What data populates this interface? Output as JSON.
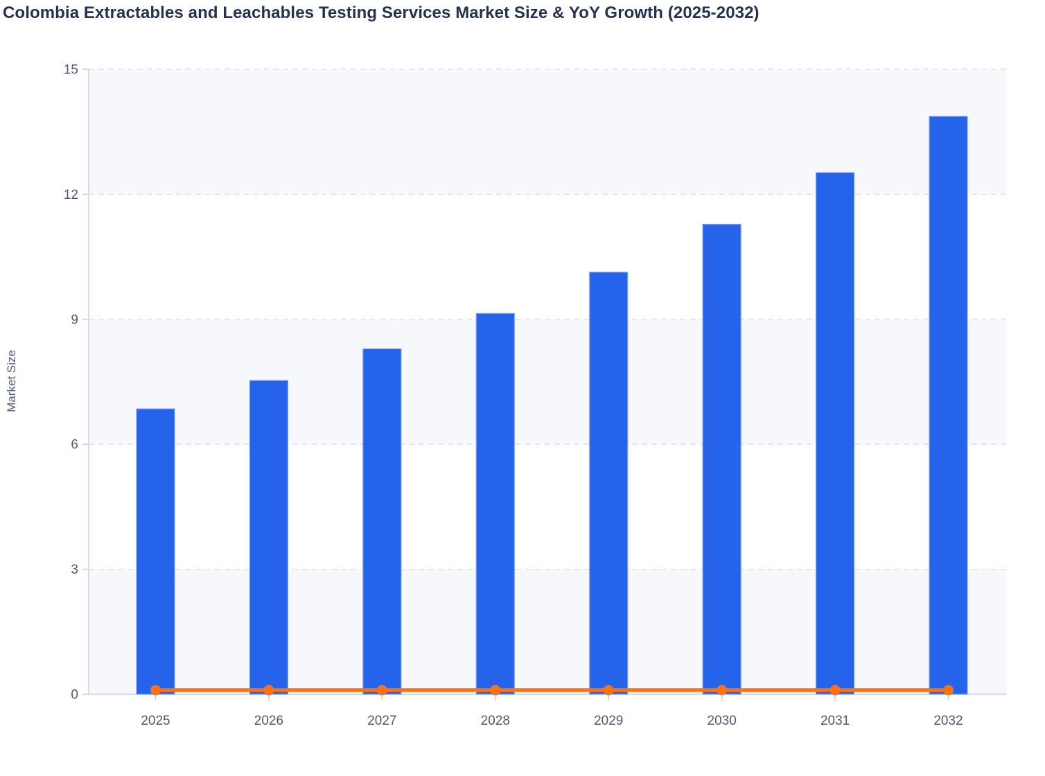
{
  "chart_data": {
    "type": "bar",
    "title": "Colombia Extractables and Leachables Testing Services Market Size & YoY Growth (2025-2032)",
    "xlabel": "",
    "ylabel": "Market Size",
    "categories": [
      "2025",
      "2026",
      "2027",
      "2028",
      "2029",
      "2030",
      "2031",
      "2032"
    ],
    "series": [
      {
        "name": "Market Size",
        "type": "bar",
        "color": "#2563eb",
        "bar_stroke": "#7d9ff2",
        "values": [
          6.85,
          7.53,
          8.29,
          9.14,
          10.13,
          11.28,
          12.52,
          13.87
        ]
      },
      {
        "name": "YoY Growth",
        "type": "line",
        "color": "#f97316",
        "marker": "circle",
        "values": [
          0.1,
          0.1,
          0.1,
          0.1,
          0.1,
          0.1,
          0.1,
          0.1
        ]
      }
    ],
    "ylim": [
      0,
      15
    ],
    "yticks": [
      0,
      3,
      6,
      9,
      12,
      15
    ],
    "grid": "horizontal-dashed",
    "legend": "none",
    "colors": {
      "band_gray": "#f7f8fb",
      "band_white": "#ffffff",
      "gridline": "#dfe1e6",
      "axis_line": "#c7d0f1",
      "tick_label": "#4d5a70",
      "title_text": "#243150"
    }
  }
}
